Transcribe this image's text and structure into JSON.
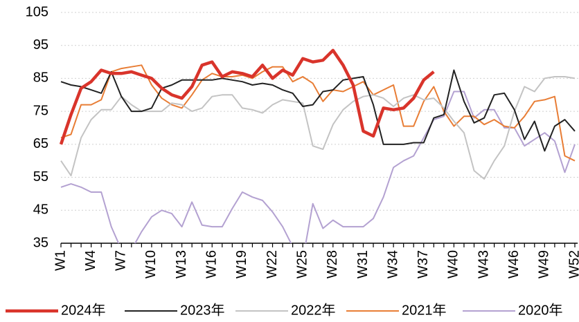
{
  "chart_data": {
    "type": "line",
    "categories": [
      "W1",
      null,
      null,
      "W4",
      null,
      null,
      "W7",
      null,
      null,
      "W10",
      null,
      null,
      "W13",
      null,
      null,
      "W16",
      null,
      null,
      "W19",
      null,
      null,
      "W22",
      null,
      null,
      "W25",
      null,
      null,
      "W28",
      null,
      null,
      "W31",
      null,
      null,
      "W34",
      null,
      null,
      "W37",
      null,
      null,
      "W40",
      null,
      null,
      "W43",
      null,
      null,
      "W46",
      null,
      null,
      "W49",
      null,
      null,
      "W52"
    ],
    "ylim": [
      35,
      105
    ],
    "yticks": [
      35,
      45,
      55,
      65,
      75,
      85,
      95,
      105
    ],
    "grid": true,
    "legend": "bottom",
    "series": [
      {
        "name": "2024年",
        "color": "#d9342b",
        "width": 4.5,
        "values": [
          65,
          74,
          82,
          84,
          87.5,
          86.5,
          86.5,
          87,
          86,
          85,
          82,
          80,
          79,
          82.5,
          89,
          90,
          85.5,
          87,
          86.5,
          85.5,
          89,
          85,
          87.5,
          86,
          91,
          90,
          90.5,
          93.5,
          89,
          83,
          69,
          67.5,
          76,
          75.5,
          76,
          79,
          84.5,
          87,
          null,
          null,
          null,
          null,
          null,
          null,
          null,
          null,
          null,
          null,
          null,
          null,
          null,
          null
        ]
      },
      {
        "name": "2023年",
        "color": "#222222",
        "width": 2,
        "values": [
          84,
          83,
          82.5,
          81.5,
          80.5,
          87,
          79.5,
          75,
          75,
          76,
          82,
          83,
          84.5,
          84.5,
          84.5,
          84.5,
          85,
          84.5,
          84,
          83,
          83.5,
          83,
          81.5,
          80.5,
          76.5,
          77,
          81,
          81.5,
          84.5,
          85,
          85.5,
          77,
          65,
          65,
          65,
          65.5,
          65.5,
          73,
          74,
          87.5,
          78,
          71.5,
          73,
          80,
          80.5,
          75.5,
          66.5,
          72,
          63,
          70.5,
          72.5,
          69
        ]
      },
      {
        "name": "2022年",
        "color": "#c3c3c3",
        "width": 2,
        "values": [
          60,
          55.5,
          67,
          72.5,
          75.5,
          75.5,
          79.5,
          77,
          75,
          75,
          75,
          77.5,
          77,
          75,
          76,
          79.5,
          80,
          80,
          76,
          75.5,
          74.5,
          77,
          78.5,
          78,
          77.5,
          64.5,
          63.5,
          71,
          75.5,
          78,
          79.5,
          80,
          79,
          76.5,
          79,
          80,
          78.5,
          79,
          76,
          72,
          68.5,
          57,
          54.5,
          60,
          64.5,
          75,
          82.5,
          81,
          85,
          85.5,
          85.5,
          85
        ]
      },
      {
        "name": "2021年",
        "color": "#e87d35",
        "width": 2,
        "values": [
          67,
          68,
          77,
          77,
          78.5,
          87,
          88,
          88.5,
          89,
          83,
          79,
          77,
          76,
          80,
          84.5,
          86.5,
          85.5,
          85.5,
          86,
          85,
          87,
          88.5,
          88.5,
          84,
          85.5,
          83.5,
          78,
          81.5,
          81,
          82.5,
          84,
          80,
          81.5,
          83,
          70.5,
          70.5,
          78,
          82.5,
          75,
          70.5,
          73.5,
          73.5,
          71,
          72.5,
          70.5,
          70,
          73.5,
          78,
          78.5,
          79.5,
          61.5,
          60
        ]
      },
      {
        "name": "2020年",
        "color": "#b3a1d1",
        "width": 2,
        "values": [
          52,
          53,
          52,
          50.5,
          50.5,
          40,
          33,
          33,
          38.5,
          43,
          45,
          44,
          40,
          47.5,
          40.5,
          40,
          40,
          45.5,
          50.5,
          49,
          48,
          44.5,
          40,
          34,
          30,
          47,
          39.5,
          42,
          40,
          40,
          40,
          42.5,
          49,
          58,
          60,
          61.5,
          67,
          72.5,
          73.5,
          81,
          81,
          73,
          75.5,
          75.5,
          70,
          70,
          64.5,
          66.5,
          68.5,
          66,
          56.5,
          65
        ]
      }
    ]
  }
}
